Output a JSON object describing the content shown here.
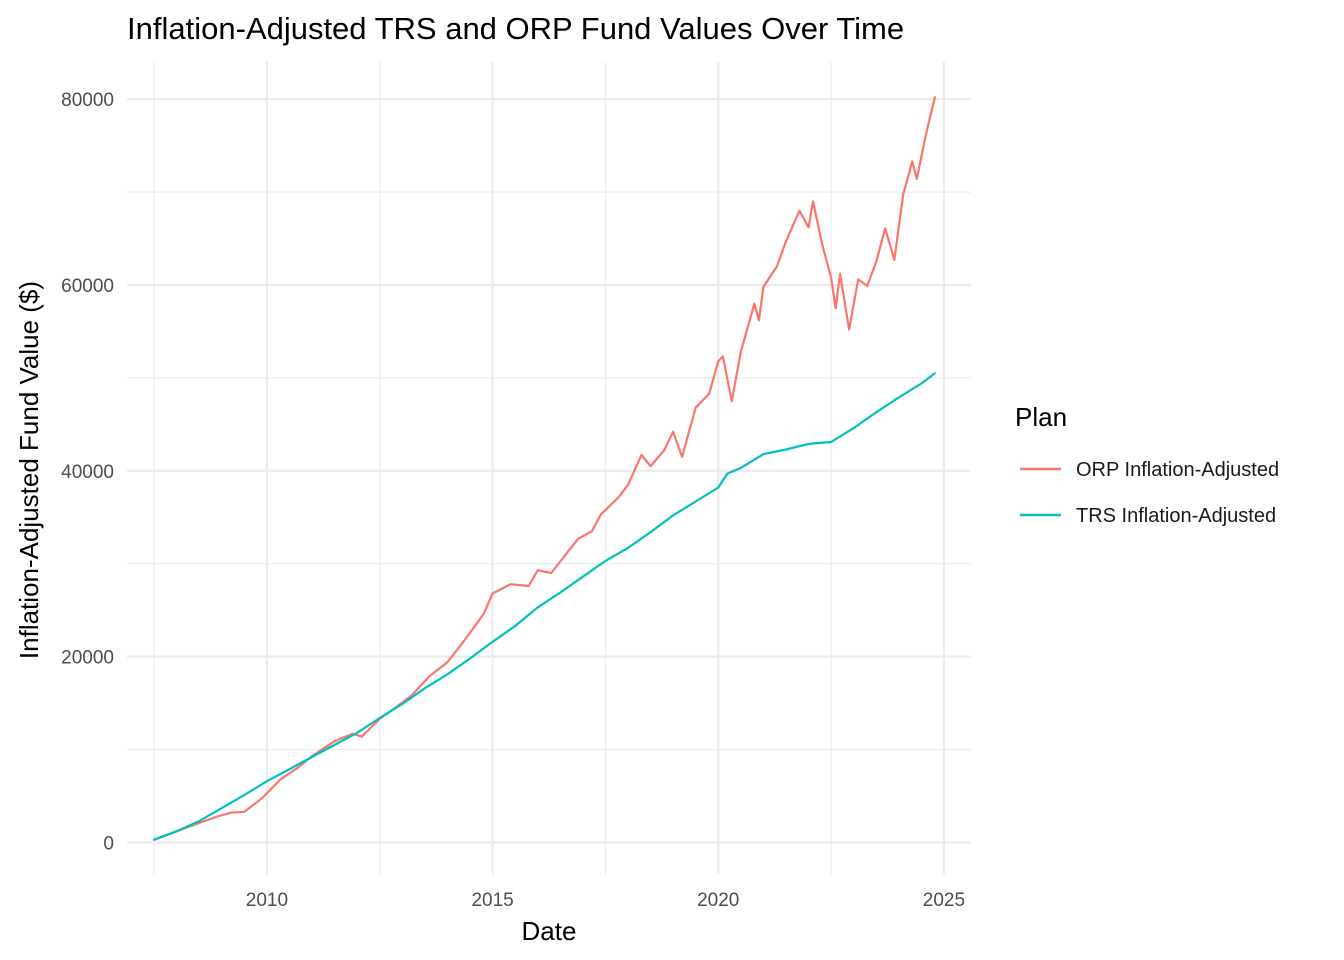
{
  "chart_data": {
    "type": "line",
    "title": "Inflation-Adjusted TRS and ORP Fund Values Over Time",
    "xlabel": "Date",
    "ylabel": "Inflation-Adjusted Fund Value ($)",
    "x_ticks": [
      2010,
      2015,
      2020,
      2025
    ],
    "x_tick_labels": [
      "2010",
      "2015",
      "2020",
      "2025"
    ],
    "y_ticks": [
      0,
      20000,
      40000,
      60000,
      80000
    ],
    "y_tick_labels": [
      "0",
      "20000",
      "40000",
      "60000",
      "80000"
    ],
    "xlim": [
      2006.9,
      2025.6
    ],
    "ylim": [
      -3500,
      84000
    ],
    "grid": true,
    "legend": {
      "title": "Plan",
      "position": "right"
    },
    "series": [
      {
        "name": "ORP Inflation-Adjusted",
        "color": "#F8766D",
        "points": [
          [
            2007.5,
            300
          ],
          [
            2008.0,
            1200
          ],
          [
            2008.5,
            2100
          ],
          [
            2008.9,
            2800
          ],
          [
            2009.2,
            3200
          ],
          [
            2009.5,
            3300
          ],
          [
            2009.9,
            4800
          ],
          [
            2010.3,
            6800
          ],
          [
            2010.7,
            8100
          ],
          [
            2011.0,
            9300
          ],
          [
            2011.5,
            10900
          ],
          [
            2011.9,
            11700
          ],
          [
            2012.1,
            11400
          ],
          [
            2012.5,
            13300
          ],
          [
            2012.9,
            14700
          ],
          [
            2013.2,
            15800
          ],
          [
            2013.6,
            17900
          ],
          [
            2014.0,
            19400
          ],
          [
            2014.4,
            21900
          ],
          [
            2014.8,
            24600
          ],
          [
            2015.0,
            26800
          ],
          [
            2015.4,
            27800
          ],
          [
            2015.8,
            27600
          ],
          [
            2016.0,
            29300
          ],
          [
            2016.3,
            29000
          ],
          [
            2016.7,
            31500
          ],
          [
            2016.9,
            32700
          ],
          [
            2017.2,
            33500
          ],
          [
            2017.4,
            35300
          ],
          [
            2017.8,
            37200
          ],
          [
            2018.0,
            38500
          ],
          [
            2018.3,
            41700
          ],
          [
            2018.5,
            40500
          ],
          [
            2018.8,
            42200
          ],
          [
            2019.0,
            44200
          ],
          [
            2019.2,
            41500
          ],
          [
            2019.5,
            46800
          ],
          [
            2019.8,
            48300
          ],
          [
            2020.0,
            51800
          ],
          [
            2020.1,
            52300
          ],
          [
            2020.3,
            47500
          ],
          [
            2020.5,
            52800
          ],
          [
            2020.8,
            58000
          ],
          [
            2020.9,
            56200
          ],
          [
            2021.0,
            59800
          ],
          [
            2021.3,
            62000
          ],
          [
            2021.5,
            64700
          ],
          [
            2021.8,
            68000
          ],
          [
            2022.0,
            66200
          ],
          [
            2022.1,
            69000
          ],
          [
            2022.3,
            64400
          ],
          [
            2022.5,
            60800
          ],
          [
            2022.6,
            57500
          ],
          [
            2022.7,
            61200
          ],
          [
            2022.9,
            55200
          ],
          [
            2023.1,
            60600
          ],
          [
            2023.3,
            59900
          ],
          [
            2023.5,
            62500
          ],
          [
            2023.7,
            66100
          ],
          [
            2023.9,
            62700
          ],
          [
            2024.1,
            69800
          ],
          [
            2024.3,
            73300
          ],
          [
            2024.4,
            71400
          ],
          [
            2024.6,
            76200
          ],
          [
            2024.8,
            80200
          ]
        ]
      },
      {
        "name": "TRS Inflation-Adjusted",
        "color": "#00BFC4",
        "points": [
          [
            2007.5,
            300
          ],
          [
            2008.0,
            1200
          ],
          [
            2008.5,
            2300
          ],
          [
            2009.0,
            3700
          ],
          [
            2009.5,
            5100
          ],
          [
            2010.0,
            6600
          ],
          [
            2010.5,
            7900
          ],
          [
            2011.0,
            9200
          ],
          [
            2011.5,
            10500
          ],
          [
            2012.0,
            11800
          ],
          [
            2012.5,
            13400
          ],
          [
            2013.0,
            14900
          ],
          [
            2013.5,
            16600
          ],
          [
            2014.0,
            18100
          ],
          [
            2014.5,
            19800
          ],
          [
            2015.0,
            21600
          ],
          [
            2015.5,
            23300
          ],
          [
            2016.0,
            25300
          ],
          [
            2016.5,
            26900
          ],
          [
            2017.0,
            28600
          ],
          [
            2017.5,
            30300
          ],
          [
            2018.0,
            31700
          ],
          [
            2018.5,
            33400
          ],
          [
            2019.0,
            35200
          ],
          [
            2019.5,
            36700
          ],
          [
            2020.0,
            38200
          ],
          [
            2020.2,
            39700
          ],
          [
            2020.5,
            40300
          ],
          [
            2021.0,
            41800
          ],
          [
            2021.5,
            42300
          ],
          [
            2022.0,
            42900
          ],
          [
            2022.5,
            43100
          ],
          [
            2023.0,
            44600
          ],
          [
            2023.5,
            46300
          ],
          [
            2024.0,
            47900
          ],
          [
            2024.5,
            49400
          ],
          [
            2024.8,
            50500
          ]
        ]
      }
    ]
  }
}
